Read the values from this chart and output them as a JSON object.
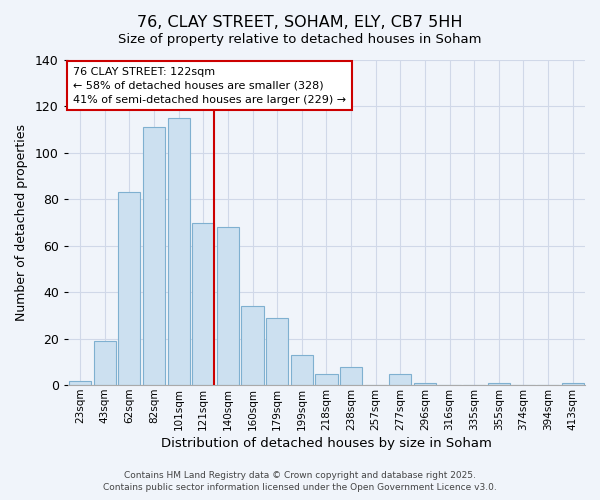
{
  "title": "76, CLAY STREET, SOHAM, ELY, CB7 5HH",
  "subtitle": "Size of property relative to detached houses in Soham",
  "xlabel": "Distribution of detached houses by size in Soham",
  "ylabel": "Number of detached properties",
  "categories": [
    "23sqm",
    "43sqm",
    "62sqm",
    "82sqm",
    "101sqm",
    "121sqm",
    "140sqm",
    "160sqm",
    "179sqm",
    "199sqm",
    "218sqm",
    "238sqm",
    "257sqm",
    "277sqm",
    "296sqm",
    "316sqm",
    "335sqm",
    "355sqm",
    "374sqm",
    "394sqm",
    "413sqm"
  ],
  "values": [
    2,
    19,
    83,
    111,
    115,
    70,
    68,
    34,
    29,
    13,
    5,
    8,
    0,
    5,
    1,
    0,
    0,
    1,
    0,
    0,
    1
  ],
  "bar_color": "#cce0f0",
  "bar_edge_color": "#7fb0d0",
  "vline_color": "#cc0000",
  "ylim": [
    0,
    140
  ],
  "yticks": [
    0,
    20,
    40,
    60,
    80,
    100,
    120,
    140
  ],
  "annotation_title": "76 CLAY STREET: 122sqm",
  "annotation_line1": "← 58% of detached houses are smaller (328)",
  "annotation_line2": "41% of semi-detached houses are larger (229) →",
  "annotation_box_color": "#ffffff",
  "annotation_box_edge": "#cc0000",
  "footer1": "Contains HM Land Registry data © Crown copyright and database right 2025.",
  "footer2": "Contains public sector information licensed under the Open Government Licence v3.0.",
  "bg_color": "#f0f4fa",
  "grid_color": "#d0d8e8",
  "vline_x_index": 5
}
